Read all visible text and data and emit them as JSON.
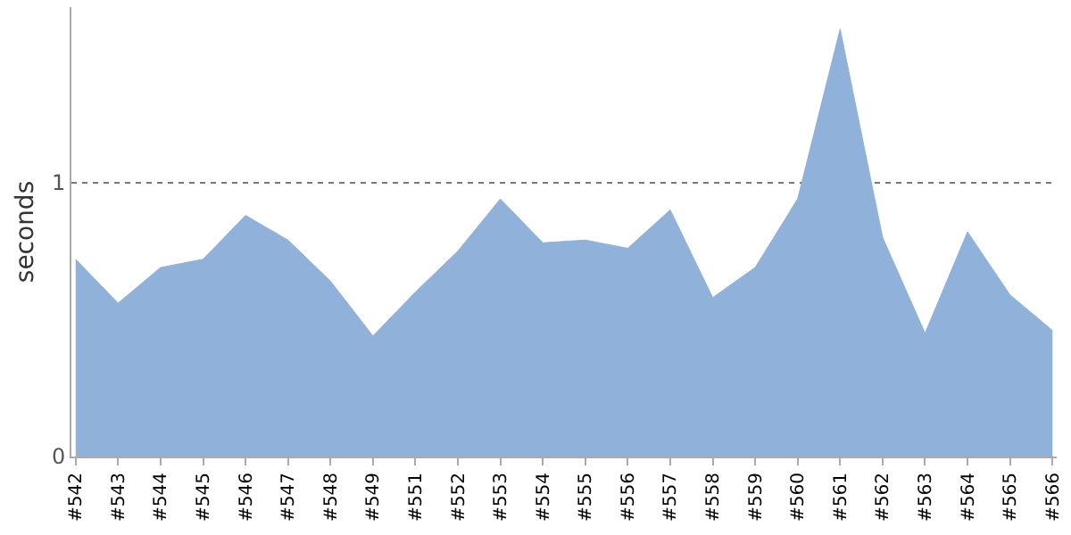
{
  "chart_data": {
    "type": "area",
    "ylabel": "seconds",
    "categories": [
      "#542",
      "#543",
      "#544",
      "#545",
      "#546",
      "#547",
      "#548",
      "#549",
      "#551",
      "#552",
      "#553",
      "#554",
      "#555",
      "#556",
      "#557",
      "#558",
      "#559",
      "#560",
      "#561",
      "#562",
      "#563",
      "#564",
      "#565",
      "#566"
    ],
    "series": [
      {
        "color": "#90b2da",
        "values": [
          0.72,
          0.56,
          0.69,
          0.72,
          0.88,
          0.79,
          0.64,
          0.44,
          0.6,
          0.75,
          0.94,
          0.78,
          0.79,
          0.76,
          0.9,
          0.58,
          0.69,
          0.94,
          1.56,
          0.8,
          0.45,
          0.82,
          0.59,
          0.46
        ]
      }
    ],
    "ylim": [
      0,
      1.64
    ],
    "yticks": [
      0,
      1
    ],
    "grid": "y"
  }
}
